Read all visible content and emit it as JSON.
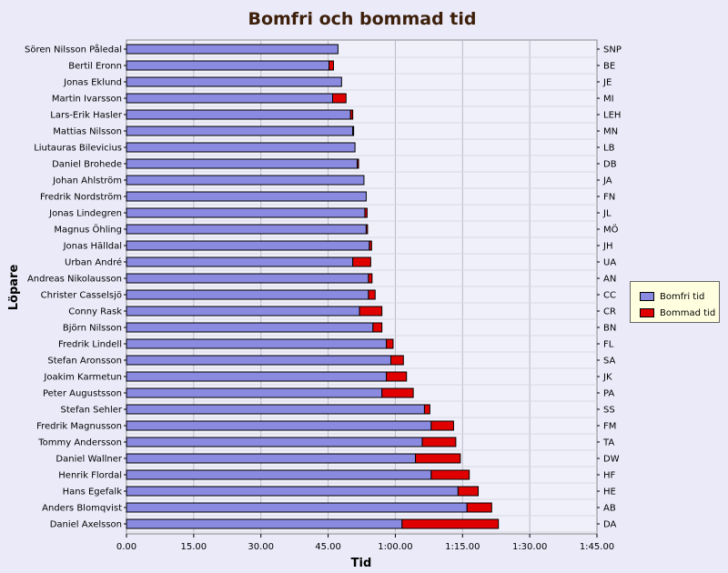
{
  "chart_data": {
    "type": "bar",
    "orientation": "horizontal",
    "stacked": true,
    "title": "Bomfri och bommad tid",
    "xlabel": "Tid",
    "ylabel": "Löpare",
    "xlim": [
      0,
      105
    ],
    "x_ticks": [
      {
        "value": 0,
        "label": "0.00"
      },
      {
        "value": 15,
        "label": "15.00"
      },
      {
        "value": 30,
        "label": "30.00"
      },
      {
        "value": 45,
        "label": "45.00"
      },
      {
        "value": 60,
        "label": "1:00.00"
      },
      {
        "value": 75,
        "label": "1:15.00"
      },
      {
        "value": 90,
        "label": "1:30.00"
      },
      {
        "value": 105,
        "label": "1:45.00"
      }
    ],
    "grid": true,
    "legend_position": "right",
    "colors": {
      "bomfri": "#8a8ae0",
      "bommad": "#e00000"
    },
    "series": [
      {
        "name": "Bomfri tid",
        "values": [
          47.2,
          45.2,
          48.0,
          46.0,
          50.0,
          50.5,
          51.0,
          51.5,
          53.0,
          53.5,
          53.2,
          53.5,
          54.2,
          50.5,
          54.0,
          54.0,
          52.0,
          55.0,
          58.0,
          59.0,
          58.0,
          57.0,
          66.5,
          68.0,
          66.0,
          64.5,
          68.0,
          74.0,
          76.0,
          61.5
        ]
      },
      {
        "name": "Bommad tid",
        "values": [
          0,
          1.0,
          0,
          3.0,
          0.5,
          0.2,
          0,
          0.3,
          0,
          0,
          0.5,
          0.3,
          0.5,
          4.0,
          0.8,
          1.5,
          5.0,
          2.0,
          1.5,
          2.8,
          4.5,
          7.0,
          1.2,
          5.0,
          7.5,
          10.0,
          8.5,
          4.5,
          5.5,
          21.5
        ]
      }
    ],
    "categories": [
      "Sören Nilsson Påledal",
      "Bertil Eronn",
      "Jonas Eklund",
      "Martin Ivarsson",
      "Lars-Erik Hasler",
      "Mattias Nilsson",
      "Liutauras Bilevicius",
      "Daniel Brohede",
      "Johan Ahlström",
      "Fredrik Nordström",
      "Jonas Lindegren",
      "Magnus Öhling",
      "Jonas Hälldal",
      "Urban André",
      "Andreas Nikolausson",
      "Christer Casselsjö",
      "Conny Rask",
      "Björn Nilsson",
      "Fredrik Lindell",
      "Stefan Aronsson",
      "Joakim Karmetun",
      "Peter Augustsson",
      "Stefan Sehler",
      "Fredrik Magnusson",
      "Tommy Andersson",
      "Daniel Wallner",
      "Henrik Flordal",
      "Hans Egefalk",
      "Anders Blomqvist",
      "Daniel Axelsson"
    ],
    "right_labels": [
      "SNP",
      "BE",
      "JE",
      "MI",
      "LEH",
      "MN",
      "LB",
      "DB",
      "JA",
      "FN",
      "JL",
      "MÖ",
      "JH",
      "UA",
      "AN",
      "CC",
      "CR",
      "BN",
      "FL",
      "SA",
      "JK",
      "PA",
      "SS",
      "FM",
      "TA",
      "DW",
      "HF",
      "HE",
      "AB",
      "DA"
    ]
  }
}
